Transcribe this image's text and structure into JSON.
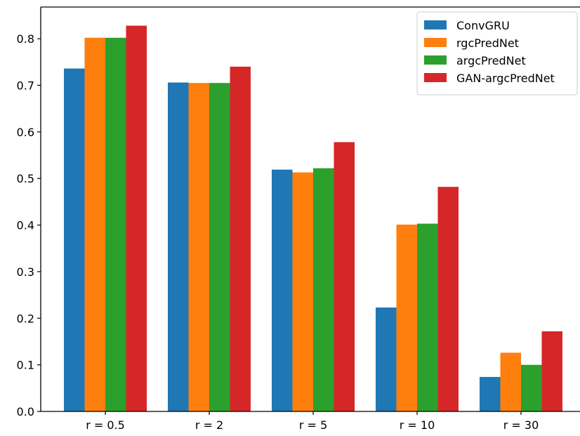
{
  "chart_data": {
    "type": "bar",
    "title": "",
    "xlabel": "",
    "ylabel": "",
    "categories": [
      "r = 0.5",
      "r = 2",
      "r = 5",
      "r = 10",
      "r = 30"
    ],
    "series": [
      {
        "name": "ConvGRU",
        "color": "#1f77b4",
        "values": [
          0.736,
          0.706,
          0.519,
          0.223,
          0.074
        ]
      },
      {
        "name": "rgcPredNet",
        "color": "#ff7f0e",
        "values": [
          0.802,
          0.705,
          0.513,
          0.401,
          0.126
        ]
      },
      {
        "name": "argcPredNet",
        "color": "#2ca02c",
        "values": [
          0.802,
          0.705,
          0.522,
          0.403,
          0.1
        ]
      },
      {
        "name": "GAN-argcPredNet",
        "color": "#d62728",
        "values": [
          0.828,
          0.74,
          0.578,
          0.482,
          0.172
        ]
      }
    ],
    "ylim": [
      0,
      0.868
    ],
    "yticks": [
      0.0,
      0.1,
      0.2,
      0.3,
      0.4,
      0.5,
      0.6,
      0.7,
      0.8
    ],
    "ytick_labels": [
      "0.0",
      "0.1",
      "0.2",
      "0.3",
      "0.4",
      "0.5",
      "0.6",
      "0.7",
      "0.8"
    ],
    "grid": false,
    "legend_position": "top-right"
  }
}
